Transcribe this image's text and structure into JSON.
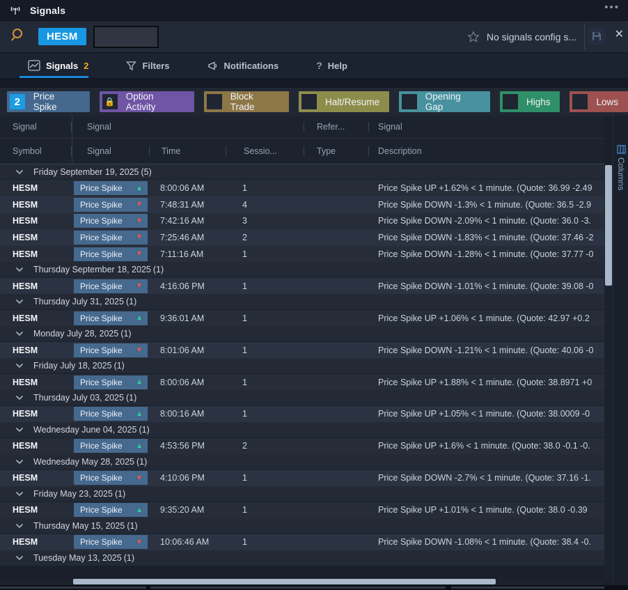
{
  "titlebar": {
    "title": "Signals",
    "menu": "•••"
  },
  "toolbar": {
    "symbol_chip": "HESM",
    "search_value": "",
    "config_status": "No signals config s...",
    "close_label": "✕"
  },
  "tabs": {
    "signals": "Signals",
    "signals_badge": "2",
    "filters": "Filters",
    "notifications": "Notifications",
    "help": "Help",
    "help_mark": "?"
  },
  "filter_buttons": [
    {
      "label": "Price Spike",
      "color": "#44688e",
      "swatch": "count",
      "badge": "2"
    },
    {
      "label": "Option Activity",
      "color": "#6f55a4",
      "swatch": "lock",
      "badge": ""
    },
    {
      "label": "Block Trade",
      "color": "#8d7747",
      "swatch": "empty",
      "badge": ""
    },
    {
      "label": "Halt/Resume",
      "color": "#8d8d4b",
      "swatch": "empty",
      "badge": ""
    },
    {
      "label": "Opening Gap",
      "color": "#47929e",
      "swatch": "empty",
      "badge": ""
    },
    {
      "label": "Highs",
      "color": "#2f8f68",
      "swatch": "empty",
      "badge": ""
    },
    {
      "label": "Lows",
      "color": "#9d5150",
      "swatch": "empty",
      "badge": ""
    }
  ],
  "table": {
    "header_groups": {
      "col1": "Signal",
      "col2": "Signal",
      "col3": "Refer...",
      "col4": "Signal"
    },
    "columns": {
      "symbol": "Symbol",
      "signal": "Signal",
      "time": "Time",
      "session": "Sessio...",
      "type": "Type",
      "description": "Description"
    },
    "badge_label": "Price Spike",
    "groups": [
      {
        "date": "Friday September 19, 2025",
        "count": "(5)",
        "rows": [
          {
            "symbol": "HESM",
            "dir": "up",
            "time": "8:00:06 AM",
            "session": "1",
            "desc": "Price Spike UP +1.62% < 1 minute. (Quote: 36.99 -2.49"
          },
          {
            "symbol": "HESM",
            "dir": "down",
            "time": "7:48:31 AM",
            "session": "4",
            "desc": "Price Spike DOWN -1.3% < 1 minute. (Quote: 36.5 -2.9"
          },
          {
            "symbol": "HESM",
            "dir": "down",
            "time": "7:42:16 AM",
            "session": "3",
            "desc": "Price Spike DOWN -2.09% < 1 minute. (Quote: 36.0 -3."
          },
          {
            "symbol": "HESM",
            "dir": "down",
            "time": "7:25:46 AM",
            "session": "2",
            "desc": "Price Spike DOWN -1.83% < 1 minute. (Quote: 37.46 -2"
          },
          {
            "symbol": "HESM",
            "dir": "down",
            "time": "7:11:16 AM",
            "session": "1",
            "desc": "Price Spike DOWN -1.28% < 1 minute. (Quote: 37.77 -0"
          }
        ]
      },
      {
        "date": "Thursday September 18, 2025",
        "count": "(1)",
        "rows": [
          {
            "symbol": "HESM",
            "dir": "down",
            "time": "4:16:06 PM",
            "session": "1",
            "desc": "Price Spike DOWN -1.01% < 1 minute. (Quote: 39.08 -0"
          }
        ]
      },
      {
        "date": "Thursday July 31, 2025",
        "count": "(1)",
        "rows": [
          {
            "symbol": "HESM",
            "dir": "up",
            "time": "9:36:01 AM",
            "session": "1",
            "desc": "Price Spike UP +1.06% < 1 minute. (Quote: 42.97 +0.2"
          }
        ]
      },
      {
        "date": "Monday July 28, 2025",
        "count": "(1)",
        "rows": [
          {
            "symbol": "HESM",
            "dir": "down",
            "time": "8:01:06 AM",
            "session": "1",
            "desc": "Price Spike DOWN -1.21% < 1 minute. (Quote: 40.06 -0"
          }
        ]
      },
      {
        "date": "Friday July 18, 2025",
        "count": "(1)",
        "rows": [
          {
            "symbol": "HESM",
            "dir": "up",
            "time": "8:00:06 AM",
            "session": "1",
            "desc": "Price Spike UP +1.88% < 1 minute. (Quote: 38.8971 +0"
          }
        ]
      },
      {
        "date": "Thursday July 03, 2025",
        "count": "(1)",
        "rows": [
          {
            "symbol": "HESM",
            "dir": "up",
            "time": "8:00:16 AM",
            "session": "1",
            "desc": "Price Spike UP +1.05% < 1 minute. (Quote: 38.0009 -0"
          }
        ]
      },
      {
        "date": "Wednesday June 04, 2025",
        "count": "(1)",
        "rows": [
          {
            "symbol": "HESM",
            "dir": "up",
            "time": "4:53:56 PM",
            "session": "2",
            "desc": "Price Spike UP +1.6% < 1 minute. (Quote: 38.0 -0.1 -0."
          }
        ]
      },
      {
        "date": "Wednesday May 28, 2025",
        "count": "(1)",
        "rows": [
          {
            "symbol": "HESM",
            "dir": "down",
            "time": "4:10:06 PM",
            "session": "1",
            "desc": "Price Spike DOWN -2.7% < 1 minute. (Quote: 37.16 -1."
          }
        ]
      },
      {
        "date": "Friday May 23, 2025",
        "count": "(1)",
        "rows": [
          {
            "symbol": "HESM",
            "dir": "up",
            "time": "9:35:20 AM",
            "session": "1",
            "desc": "Price Spike UP +1.01% < 1 minute. (Quote: 38.0 -0.39"
          }
        ]
      },
      {
        "date": "Thursday May 15, 2025",
        "count": "(1)",
        "rows": [
          {
            "symbol": "HESM",
            "dir": "down",
            "time": "10:06:46 AM",
            "session": "1",
            "desc": "Price Spike DOWN -1.08% < 1 minute. (Quote: 38.4 -0."
          }
        ]
      },
      {
        "date": "Tuesday May 13, 2025",
        "count": "(1)",
        "rows": []
      }
    ]
  },
  "right_rail": {
    "label": "Columns"
  },
  "colors": {
    "up": "#35c99e",
    "down": "#e8564b",
    "badge_bg": "#46698e",
    "accent_blue": "#1b9ce3",
    "badge_orange": "#f5a623"
  }
}
